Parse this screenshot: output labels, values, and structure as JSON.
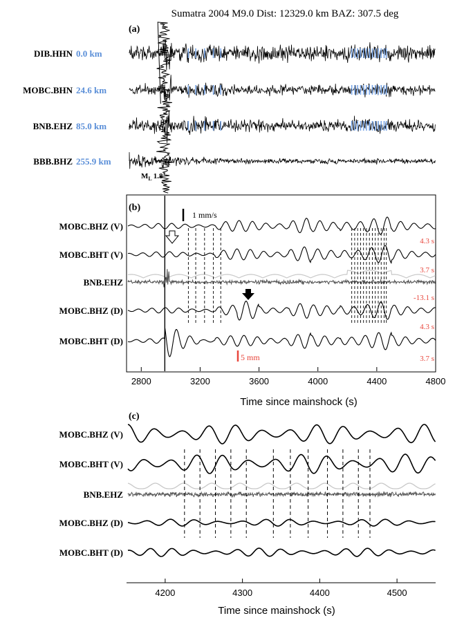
{
  "title": "Sumatra 2004 M9.0 Dist: 12329.0 km BAZ: 307.5 deg",
  "colors": {
    "trace": "#000000",
    "distance": "#5b8fd8",
    "lag": "#e8463c",
    "envelope": "#c8c8c8",
    "tick": "#7aa6e6"
  },
  "panel_a": {
    "label": "(a)",
    "ml_label": "M",
    "ml_sub": "L",
    "ml_value": "1.8",
    "stations": [
      {
        "name": "DIB.HHN",
        "distance": "0.0 km"
      },
      {
        "name": "MOBC.BHN",
        "distance": "24.6 km"
      },
      {
        "name": "BNB.EHZ",
        "distance": "85.0 km"
      },
      {
        "name": "BBB.BHZ",
        "distance": "255.9 km"
      }
    ]
  },
  "panel_b": {
    "label": "(b)",
    "scale_top": "1 mm/s",
    "scale_bottom": "5 mm",
    "traces": [
      {
        "name": "MOBC.BHZ (V)",
        "lag": ""
      },
      {
        "name": "MOBC.BHT (V)",
        "lag": "4.3 s"
      },
      {
        "name": "BNB.EHZ",
        "lag": "3.7 s"
      },
      {
        "name": "MOBC.BHZ (D)",
        "lag": "-13.1 s"
      },
      {
        "name": "MOBC.BHT (D)",
        "lag": "4.3 s"
      },
      {
        "name": "",
        "lag": "3.7 s"
      }
    ]
  },
  "panel_c": {
    "label": "(c)",
    "traces": [
      "MOBC.BHZ (V)",
      "MOBC.BHT (V)",
      "BNB.EHZ",
      "MOBC.BHZ (D)",
      "MOBC.BHT (D)"
    ]
  },
  "chart_data": [
    {
      "type": "line",
      "xlabel": "Time since mainshock (s)",
      "xlim": [
        2700,
        4800
      ],
      "xticks": [
        2800,
        3200,
        3600,
        4000,
        4400,
        4800
      ],
      "mainshock_arrival": 2960,
      "tremor_picks_early": [
        3120,
        3170,
        3230,
        3290,
        3340
      ],
      "tremor_picks_late": [
        4230,
        4250,
        4270,
        4290,
        4310,
        4330,
        4350,
        4370,
        4390,
        4410,
        4430,
        4450,
        4465
      ]
    },
    {
      "type": "line",
      "xlabel": "Time since mainshock (s)",
      "xlim": [
        4150,
        4550
      ],
      "xticks": [
        4200,
        4300,
        4400,
        4500
      ],
      "tremor_picks": [
        4225,
        4245,
        4265,
        4285,
        4305,
        4340,
        4362,
        4385,
        4410,
        4430,
        4450,
        4465
      ]
    }
  ]
}
